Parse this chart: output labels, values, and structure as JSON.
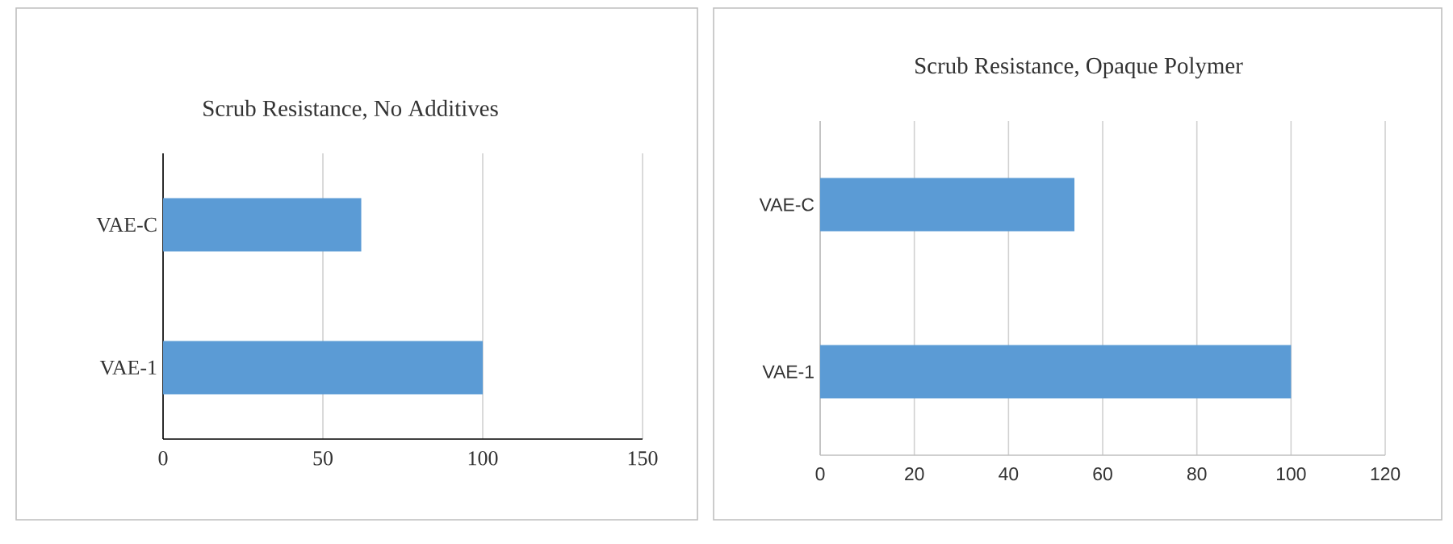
{
  "chart_data": [
    {
      "type": "bar",
      "orientation": "horizontal",
      "title": "Scrub Resistance, No Additives",
      "categories": [
        "VAE-C",
        "VAE-1"
      ],
      "values": [
        62,
        100
      ],
      "color": "#5b9bd5",
      "xlim": [
        0,
        150
      ],
      "xticks": [
        0,
        50,
        100,
        150
      ],
      "grid": "x"
    },
    {
      "type": "bar",
      "orientation": "horizontal",
      "title": "Scrub Resistance, Opaque Polymer",
      "categories": [
        "VAE-C",
        "VAE-1"
      ],
      "values": [
        54,
        100
      ],
      "color": "#5b9bd5",
      "xlim": [
        0,
        120
      ],
      "xticks": [
        0,
        20,
        40,
        60,
        80,
        100,
        120
      ],
      "grid": "x"
    }
  ]
}
